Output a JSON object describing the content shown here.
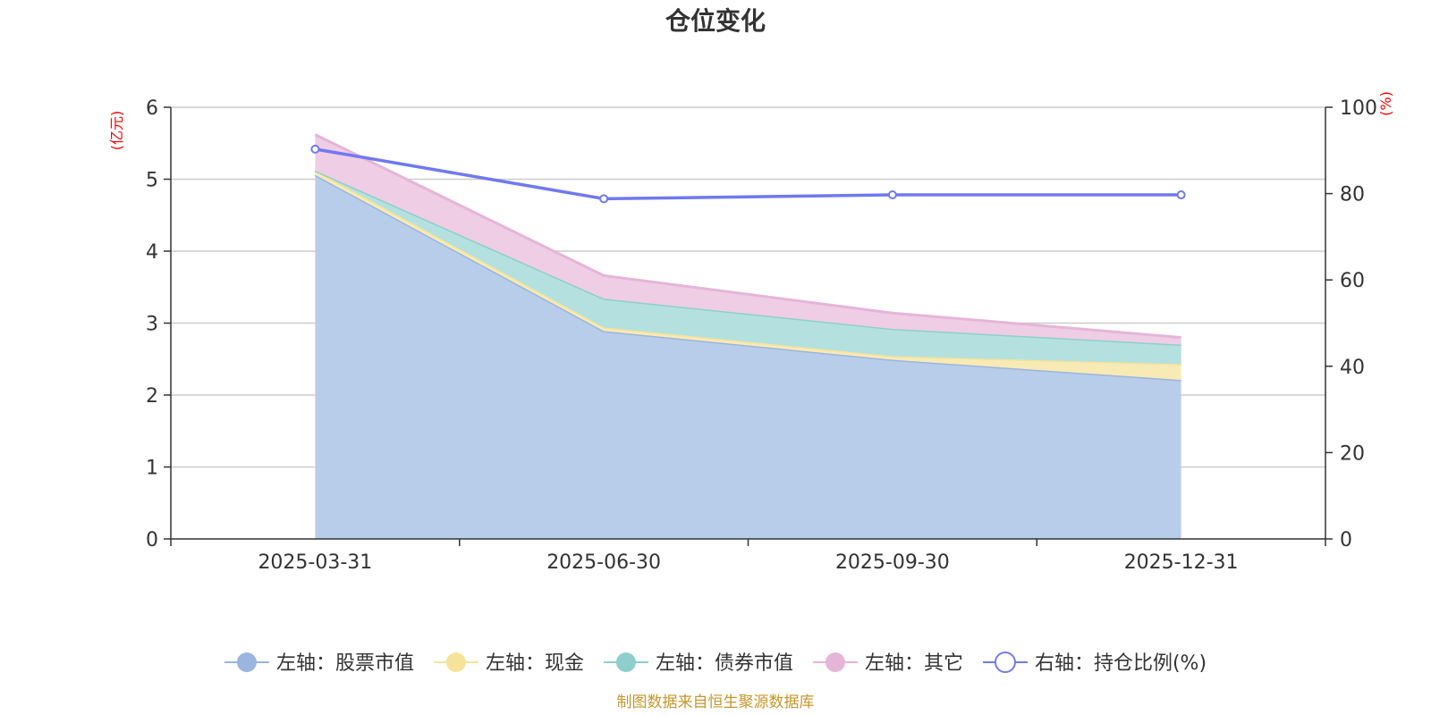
{
  "chart_data": {
    "type": "area",
    "title": "仓位变化",
    "categories": [
      "2025-03-31",
      "2025-06-30",
      "2025-09-30",
      "2025-12-31"
    ],
    "left_axis": {
      "unit": "(亿元)",
      "ticks": [
        "0",
        "1",
        "2",
        "3",
        "4",
        "5",
        "6"
      ],
      "range": [
        0,
        6
      ]
    },
    "right_axis": {
      "unit": "(%)",
      "ticks": [
        "0",
        "20",
        "40",
        "60",
        "80",
        "100"
      ],
      "range": [
        0,
        100
      ]
    },
    "series": [
      {
        "name": "左轴：股票市值",
        "axis": "left",
        "stacked": true,
        "color": "#9ab5e0",
        "fill": "#b8cdea",
        "values": [
          5.06,
          2.89,
          2.49,
          2.21
        ]
      },
      {
        "name": "左轴：现金",
        "axis": "left",
        "stacked": true,
        "color": "#f5e39a",
        "fill": "#f8eab4",
        "values": [
          0.06,
          0.05,
          0.05,
          0.22
        ]
      },
      {
        "name": "左轴：债券市值",
        "axis": "left",
        "stacked": true,
        "color": "#8ecfcd",
        "fill": "#b4e1e0",
        "values": [
          0.0,
          0.4,
          0.38,
          0.27
        ]
      },
      {
        "name": "左轴：其它",
        "axis": "left",
        "stacked": true,
        "color": "#e5b5d8",
        "fill": "#efcde5",
        "values": [
          0.5,
          0.32,
          0.22,
          0.1
        ]
      },
      {
        "name": "右轴：持仓比例(%)",
        "axis": "right",
        "type": "line",
        "color": "#7079f0",
        "values": [
          90.3,
          78.8,
          79.7,
          79.7
        ]
      }
    ],
    "legend_position": "bottom",
    "grid": true
  },
  "source_note": "制图数据来自恒生聚源数据库"
}
